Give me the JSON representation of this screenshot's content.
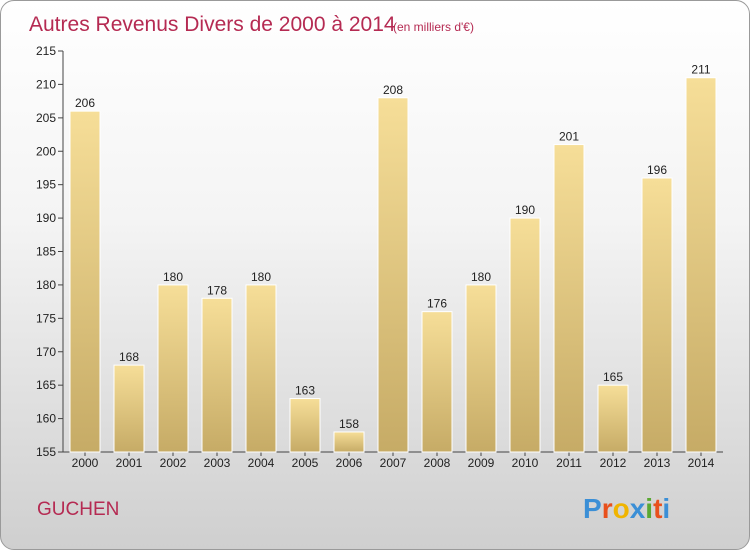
{
  "chart_data": {
    "type": "bar",
    "title": "Autres Revenus Divers de 2000 à 2014",
    "subtitle": "(en milliers d'€)",
    "categories": [
      "2000",
      "2001",
      "2002",
      "2003",
      "2004",
      "2005",
      "2006",
      "2007",
      "2008",
      "2009",
      "2010",
      "2011",
      "2012",
      "2013",
      "2014"
    ],
    "values": [
      206,
      168,
      180,
      178,
      180,
      163,
      158,
      208,
      176,
      180,
      190,
      201,
      165,
      196,
      211
    ],
    "ylim": [
      155,
      215
    ],
    "yticks": [
      155,
      160,
      165,
      170,
      175,
      180,
      185,
      190,
      195,
      200,
      205,
      210,
      215
    ],
    "grid": false,
    "bar_color": "#e9cd84"
  },
  "place": "GUCHEN",
  "logo": {
    "text": "Proxiti",
    "letters": [
      "P",
      "r",
      "o",
      "x",
      "i",
      "t",
      "i"
    ],
    "colors": [
      "#3b8fd6",
      "#e8501c",
      "#f0b400",
      "#3b8fd6",
      "#5aa832",
      "#e8501c",
      "#3b8fd6"
    ]
  }
}
